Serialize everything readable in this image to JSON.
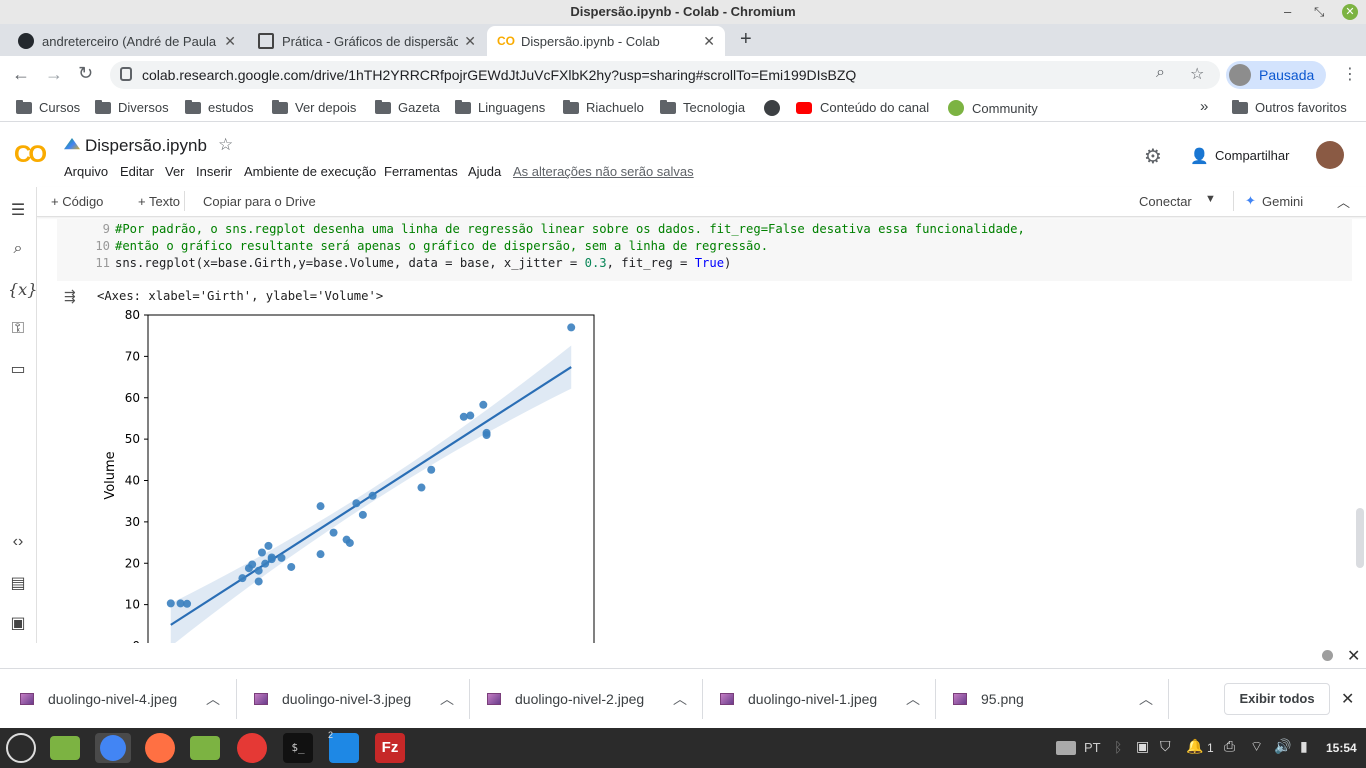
{
  "window": {
    "title": "Dispersão.ipynb - Colab - Chromium"
  },
  "tabs": [
    {
      "title": "andreterceiro (André de Paula",
      "active": false
    },
    {
      "title": "Prática - Gráficos de dispersão",
      "active": false
    },
    {
      "title": "Dispersão.ipynb - Colab",
      "active": true
    }
  ],
  "toolbar": {
    "url": "colab.research.google.com/drive/1hTH2YRRCRfpojrGEWdJtJuVcFXlbK2hy?usp=sharing#scrollTo=Emi199DIsBZQ",
    "profile_label": "Pausada"
  },
  "bookmarks": {
    "items": [
      "Cursos",
      "Diversos",
      "estudos",
      "Ver depois",
      "Gazeta",
      "Linguagens",
      "Riachuelo",
      "Tecnologia",
      "Conteúdo do canal",
      "Community"
    ],
    "more": "»",
    "others": "Outros favoritos"
  },
  "colab": {
    "notebook_title": "Dispersão.ipynb",
    "menu": [
      "Arquivo",
      "Editar",
      "Ver",
      "Inserir",
      "Ambiente de execução",
      "Ferramentas",
      "Ajuda"
    ],
    "unsaved": "As alterações não serão salvas",
    "share": "Compartilhar",
    "add_code": "+ Código",
    "add_text": "+ Texto",
    "copy_drive": "Copiar para o Drive",
    "connect": "Conectar",
    "gemini": "Gemini"
  },
  "code": {
    "lines": [
      {
        "n": "9",
        "text": "#Por padrão, o sns.regplot desenha uma linha de regressão linear sobre os dados. fit_reg=False desativa essa funcionalidade,"
      },
      {
        "n": "10",
        "text": "#então o gráfico resultante será apenas o gráfico de dispersão, sem a linha de regressão."
      },
      {
        "n": "11",
        "prefix": "sns.regplot(x=base.Girth,y=base.Volume, data = base, x_jitter = ",
        "jitter": "0.3",
        "mid": ", fit_reg = ",
        "kw": "True",
        "suffix": ")"
      }
    ]
  },
  "output": {
    "repr": "<Axes: xlabel='Girth', ylabel='Volume'>"
  },
  "chart_data": {
    "type": "scatter",
    "ylabel": "Volume",
    "ylim": [
      0,
      80
    ],
    "yticks": [
      0,
      10,
      20,
      30,
      40,
      50,
      60,
      70,
      80
    ],
    "x": [
      8.3,
      8.6,
      8.8,
      10.5,
      10.7,
      10.8,
      11.0,
      11.0,
      11.1,
      11.2,
      11.3,
      11.4,
      11.4,
      11.7,
      12.0,
      12.9,
      12.9,
      13.3,
      13.7,
      13.8,
      14.0,
      14.2,
      14.5,
      16.0,
      16.3,
      17.3,
      17.5,
      17.9,
      18.0,
      18.0,
      20.6
    ],
    "y": [
      10.3,
      10.3,
      10.2,
      16.4,
      18.8,
      19.7,
      15.6,
      18.2,
      22.6,
      19.9,
      24.2,
      21.0,
      21.4,
      21.3,
      19.1,
      22.2,
      33.8,
      27.4,
      25.7,
      24.9,
      34.5,
      31.7,
      36.3,
      38.3,
      42.6,
      55.4,
      55.7,
      58.3,
      51.5,
      51.0,
      77.0
    ],
    "regression": {
      "slope": 5.066,
      "intercept": -36.94
    },
    "point_color": "#3a7fbf",
    "line_color": "#2a6eb5"
  },
  "downloads": {
    "files": [
      "duolingo-nivel-4.jpeg",
      "duolingo-nivel-3.jpeg",
      "duolingo-nivel-2.jpeg",
      "duolingo-nivel-1.jpeg",
      "95.png"
    ],
    "show_all": "Exibir todos"
  },
  "taskbar": {
    "lang": "PT",
    "workspace": "1",
    "clock": "15:54",
    "badge": "2"
  }
}
